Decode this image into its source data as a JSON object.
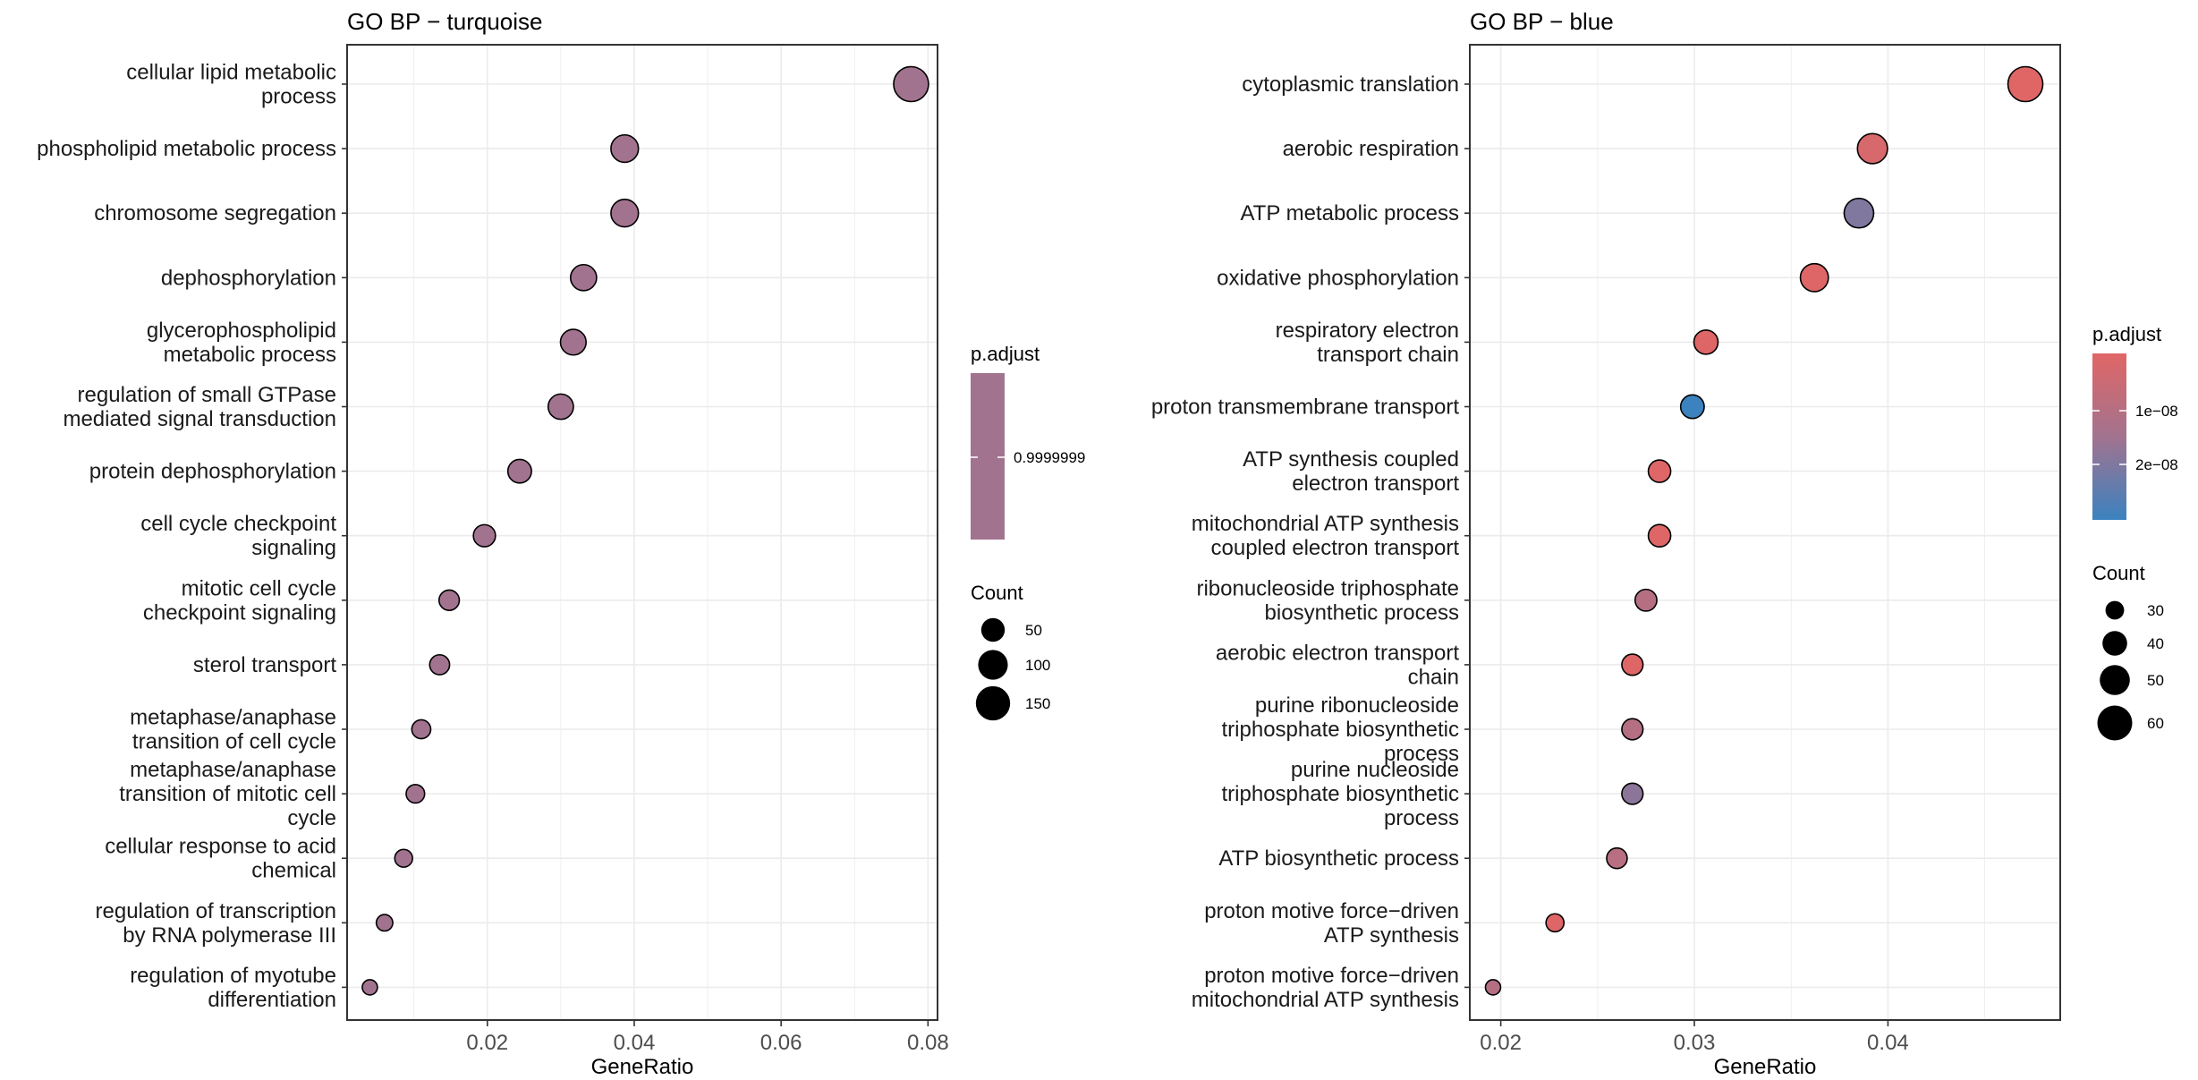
{
  "chart_data": [
    {
      "type": "scatter",
      "variant": "dotplot",
      "title": "GO BP − turquoise",
      "xlabel": "GeneRatio",
      "ylabel": "",
      "xlim": [
        0.0009,
        0.0813
      ],
      "xticks": [
        0.02,
        0.04,
        0.06,
        0.08
      ],
      "xtick_labels": [
        "0.02",
        "0.04",
        "0.06",
        "0.08"
      ],
      "grid": true,
      "legend_placement": "right",
      "categories": [
        [
          "cellular lipid metabolic",
          "process"
        ],
        [
          "phospholipid metabolic process"
        ],
        [
          "chromosome segregation"
        ],
        [
          "dephosphorylation"
        ],
        [
          "glycerophospholipid",
          "metabolic process"
        ],
        [
          "regulation of small GTPase",
          "mediated signal transduction"
        ],
        [
          "protein dephosphorylation"
        ],
        [
          "cell cycle checkpoint",
          "signaling"
        ],
        [
          "mitotic cell cycle",
          "checkpoint signaling"
        ],
        [
          "sterol transport"
        ],
        [
          "metaphase/anaphase",
          "transition of cell cycle"
        ],
        [
          "metaphase/anaphase",
          "transition of mitotic cell",
          "cycle"
        ],
        [
          "cellular response to acid",
          "chemical"
        ],
        [
          "regulation of transcription",
          "by RNA polymerase III"
        ],
        [
          "regulation of myotube",
          "differentiation"
        ]
      ],
      "gene_ratio": [
        0.0777,
        0.0387,
        0.0387,
        0.0331,
        0.0317,
        0.03,
        0.0244,
        0.0196,
        0.0148,
        0.0135,
        0.011,
        0.0102,
        0.0086,
        0.006,
        0.004
      ],
      "count": [
        157,
        80,
        80,
        68,
        65,
        62,
        50,
        40,
        30,
        28,
        23,
        21,
        18,
        13,
        9
      ],
      "p_adjust": [
        0.9999999,
        0.9999999,
        0.9999999,
        0.9999999,
        0.9999999,
        0.9999999,
        0.9999999,
        0.9999999,
        0.9999999,
        0.9999999,
        0.9999999,
        0.9999999,
        0.9999999,
        0.9999999,
        0.9999999
      ],
      "color_legend": {
        "title": "p.adjust",
        "tick_labels": [
          "0.9999999"
        ],
        "tick_values": [
          0.9999999
        ],
        "gradient_colors": [
          "#a2738f",
          "#a2738f"
        ]
      },
      "size_legend": {
        "title": "Count",
        "values": [
          50,
          100,
          150
        ],
        "labels": [
          "50",
          "100",
          "150"
        ],
        "range": [
          9,
          157
        ]
      },
      "point_color": "#a2738f"
    },
    {
      "type": "scatter",
      "variant": "dotplot",
      "title": "GO BP − blue",
      "xlabel": "GeneRatio",
      "ylabel": "",
      "xlim": [
        0.0184,
        0.0489
      ],
      "xticks": [
        0.02,
        0.03,
        0.04
      ],
      "xtick_labels": [
        "0.02",
        "0.03",
        "0.04"
      ],
      "grid": true,
      "legend_placement": "right",
      "categories": [
        [
          "cytoplasmic translation"
        ],
        [
          "aerobic respiration"
        ],
        [
          "ATP metabolic process"
        ],
        [
          "oxidative phosphorylation"
        ],
        [
          "respiratory electron",
          "transport chain"
        ],
        [
          "proton transmembrane transport"
        ],
        [
          "ATP synthesis coupled",
          "electron transport"
        ],
        [
          "mitochondrial ATP synthesis",
          "coupled electron transport"
        ],
        [
          "ribonucleoside triphosphate",
          "biosynthetic process"
        ],
        [
          "aerobic electron transport",
          "chain"
        ],
        [
          "purine ribonucleoside",
          "triphosphate biosynthetic",
          "process"
        ],
        [
          "purine nucleoside",
          "triphosphate biosynthetic",
          "process"
        ],
        [
          "ATP biosynthetic process"
        ],
        [
          "proton motive force−driven",
          "ATP synthesis"
        ],
        [
          "proton motive force−driven",
          "mitochondrial ATP synthesis"
        ]
      ],
      "gene_ratio": [
        0.0471,
        0.0392,
        0.0385,
        0.0362,
        0.0306,
        0.0299,
        0.0282,
        0.0282,
        0.0275,
        0.0268,
        0.0268,
        0.0268,
        0.026,
        0.0228,
        0.0196
      ],
      "count": [
        60,
        50,
        49,
        46,
        39,
        38,
        36,
        36,
        35,
        34,
        34,
        34,
        33,
        29,
        25
      ],
      "p_adjust": [
        3e-10,
        3e-09,
        2.6e-08,
        1e-09,
        1e-09,
        3.9e-08,
        1e-09,
        1e-09,
        1.35e-08,
        1e-09,
        1.4e-08,
        2.4e-08,
        1.3e-08,
        1e-09,
        1.4e-08
      ],
      "color_legend": {
        "title": "p.adjust",
        "tick_labels": [
          "1e−08",
          "2e−08"
        ],
        "tick_values": [
          1e-08,
          2e-08
        ],
        "range": [
          3e-10,
          3.9e-08
        ],
        "gradient_colors": [
          "#e06666",
          "#3b82bf"
        ]
      },
      "size_legend": {
        "title": "Count",
        "values": [
          30,
          40,
          50,
          60
        ],
        "labels": [
          "30",
          "40",
          "50",
          "60"
        ],
        "range": [
          25,
          60
        ]
      }
    }
  ]
}
